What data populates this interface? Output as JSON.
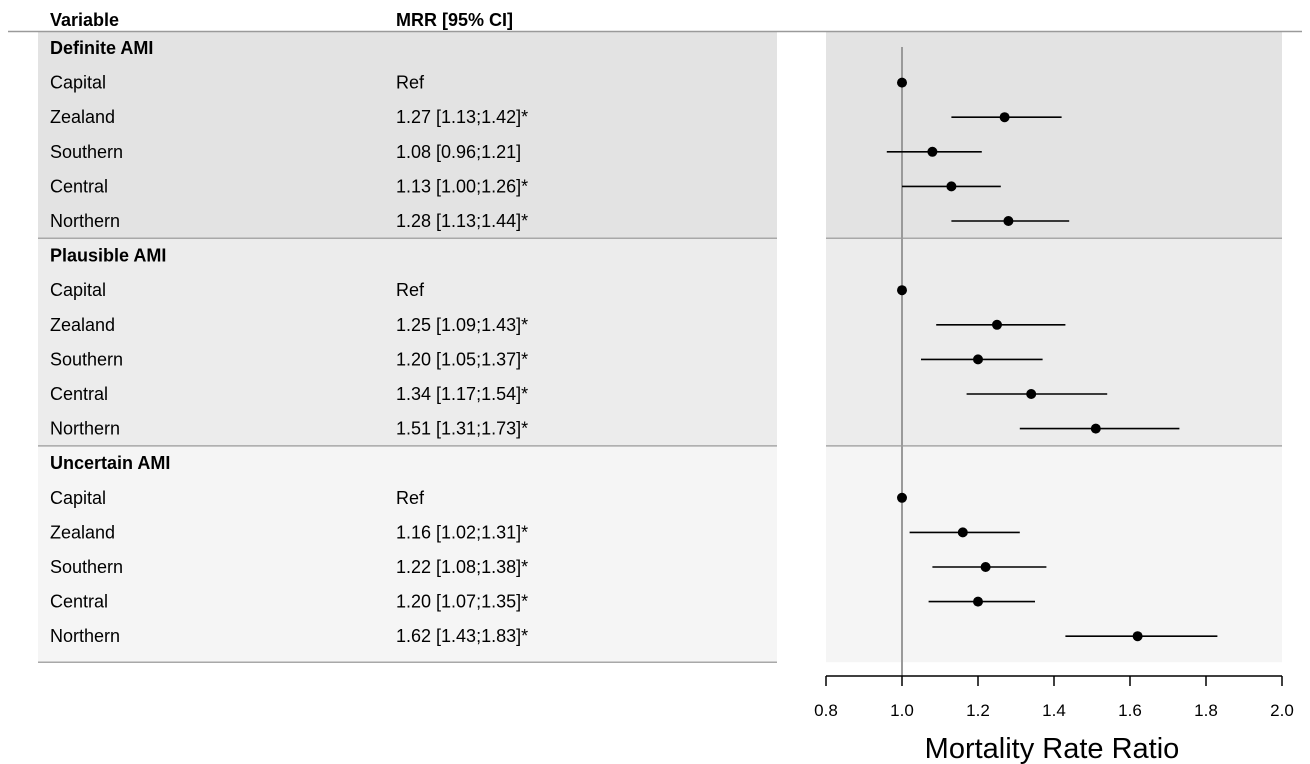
{
  "table": {
    "col_variable": "Variable",
    "col_mrr": "MRR [95% CI]",
    "groups": [
      {
        "title": "Definite AMI",
        "color": "#e3e3e3",
        "rows": [
          {
            "label": "Capital",
            "text": "Ref"
          },
          {
            "label": "Zealand",
            "text": "1.27 [1.13;1.42]*"
          },
          {
            "label": "Southern",
            "text": "1.08 [0.96;1.21]"
          },
          {
            "label": "Central",
            "text": "1.13 [1.00;1.26]*"
          },
          {
            "label": "Northern",
            "text": "1.28 [1.13;1.44]*"
          }
        ]
      },
      {
        "title": "Plausible AMI",
        "color": "#ececec",
        "rows": [
          {
            "label": "Capital",
            "text": "Ref"
          },
          {
            "label": "Zealand",
            "text": "1.25 [1.09;1.43]*"
          },
          {
            "label": "Southern",
            "text": "1.20 [1.05;1.37]*"
          },
          {
            "label": "Central",
            "text": "1.34 [1.17;1.54]*"
          },
          {
            "label": "Northern",
            "text": "1.51 [1.31;1.73]*"
          }
        ]
      },
      {
        "title": "Uncertain AMI",
        "color": "#f5f5f5",
        "rows": [
          {
            "label": "Capital",
            "text": "Ref"
          },
          {
            "label": "Zealand",
            "text": "1.16 [1.02;1.31]*"
          },
          {
            "label": "Southern",
            "text": "1.22 [1.08;1.38]*"
          },
          {
            "label": "Central",
            "text": "1.20 [1.07;1.35]*"
          },
          {
            "label": "Northern",
            "text": "1.62 [1.43;1.83]*"
          }
        ]
      }
    ]
  },
  "chart_data": {
    "type": "forest",
    "xlabel": "Mortality Rate Ratio",
    "xlim": [
      0.8,
      2.0
    ],
    "xticks": [
      0.8,
      1.0,
      1.2,
      1.4,
      1.6,
      1.8,
      2.0
    ],
    "xtick_labels": [
      "0.8",
      "1.0",
      "1.2",
      "1.4",
      "1.6",
      "1.8",
      "2.0"
    ],
    "reference_line": 1.0,
    "groups": [
      {
        "name": "Definite AMI",
        "rows": [
          {
            "label": "Capital",
            "est": 1.0,
            "lo": null,
            "hi": null
          },
          {
            "label": "Zealand",
            "est": 1.27,
            "lo": 1.13,
            "hi": 1.42
          },
          {
            "label": "Southern",
            "est": 1.08,
            "lo": 0.96,
            "hi": 1.21
          },
          {
            "label": "Central",
            "est": 1.13,
            "lo": 1.0,
            "hi": 1.26
          },
          {
            "label": "Northern",
            "est": 1.28,
            "lo": 1.13,
            "hi": 1.44
          }
        ]
      },
      {
        "name": "Plausible AMI",
        "rows": [
          {
            "label": "Capital",
            "est": 1.0,
            "lo": null,
            "hi": null
          },
          {
            "label": "Zealand",
            "est": 1.25,
            "lo": 1.09,
            "hi": 1.43
          },
          {
            "label": "Southern",
            "est": 1.2,
            "lo": 1.05,
            "hi": 1.37
          },
          {
            "label": "Central",
            "est": 1.34,
            "lo": 1.17,
            "hi": 1.54
          },
          {
            "label": "Northern",
            "est": 1.51,
            "lo": 1.31,
            "hi": 1.73
          }
        ]
      },
      {
        "name": "Uncertain AMI",
        "rows": [
          {
            "label": "Capital",
            "est": 1.0,
            "lo": null,
            "hi": null
          },
          {
            "label": "Zealand",
            "est": 1.16,
            "lo": 1.02,
            "hi": 1.31
          },
          {
            "label": "Southern",
            "est": 1.22,
            "lo": 1.08,
            "hi": 1.38
          },
          {
            "label": "Central",
            "est": 1.2,
            "lo": 1.07,
            "hi": 1.35
          },
          {
            "label": "Northern",
            "est": 1.62,
            "lo": 1.43,
            "hi": 1.83
          }
        ]
      }
    ],
    "colors": {
      "point": "#000000",
      "ci": "#000000",
      "reference_line": "#9a9a9a",
      "divider": "#a8a8a8",
      "header_rule": "#9a9a9a"
    }
  }
}
